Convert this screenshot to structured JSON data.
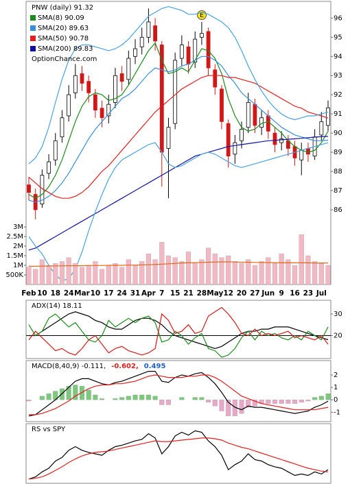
{
  "chart_data": [
    {
      "type": "candlestick",
      "title": "PNW (daily) 91.32",
      "watermark": "OptionChance.com",
      "earnings_label": "E",
      "categories": [
        "Feb",
        null,
        "10",
        null,
        "18",
        null,
        "24",
        null,
        "Mar",
        null,
        "10",
        null,
        "17",
        null,
        "24",
        null,
        "31",
        null,
        "Apr",
        null,
        "7",
        null,
        "15",
        null,
        "21",
        null,
        "28",
        null,
        "May",
        null,
        "12",
        null,
        "20",
        null,
        "27",
        null,
        "Jun",
        null,
        "9",
        null,
        "16",
        null,
        "23",
        null,
        "Jul",
        null
      ],
      "open": [
        87.3,
        86.8,
        86.3,
        87.9,
        88.6,
        89.8,
        90.9,
        92.1,
        93.1,
        92.7,
        92.0,
        91.3,
        90.9,
        91.6,
        93.1,
        92.8,
        94.0,
        94.5,
        95.0,
        95.6,
        94.6,
        89.2,
        90.5,
        93.9,
        94.5,
        93.7,
        95.0,
        95.3,
        93.3,
        92.3,
        90.5,
        88.9,
        89.6,
        90.3,
        91.5,
        90.3,
        90.9,
        90.0,
        89.5,
        89.6,
        89.3,
        88.6,
        89.2,
        88.8,
        89.9,
        90.4
      ],
      "high": [
        87.7,
        87.1,
        88.1,
        88.9,
        90.0,
        91.2,
        92.5,
        93.6,
        93.5,
        93.0,
        92.3,
        91.7,
        92.0,
        93.4,
        93.5,
        94.3,
        94.9,
        95.5,
        96.5,
        96.0,
        94.8,
        90.8,
        94.2,
        95.1,
        94.8,
        95.3,
        95.8,
        95.5,
        93.6,
        92.5,
        90.7,
        89.9,
        90.6,
        92.1,
        91.8,
        91.2,
        91.2,
        90.3,
        90.1,
        89.9,
        89.6,
        89.5,
        89.5,
        90.2,
        91.1,
        91.7
      ],
      "low": [
        86.5,
        85.5,
        86.1,
        87.6,
        88.3,
        89.5,
        90.6,
        91.8,
        92.2,
        91.6,
        90.8,
        90.3,
        90.5,
        91.3,
        92.2,
        92.5,
        93.6,
        94.1,
        94.7,
        94.3,
        87.2,
        86.6,
        90.2,
        93.5,
        93.1,
        93.4,
        94.6,
        93.0,
        92.0,
        90.2,
        88.2,
        88.4,
        89.2,
        90.0,
        90.0,
        89.9,
        89.7,
        89.0,
        89.1,
        88.8,
        88.3,
        87.8,
        88.5,
        88.6,
        89.6,
        90.1
      ],
      "close": [
        86.9,
        86.0,
        87.8,
        88.5,
        89.6,
        90.8,
        92.0,
        93.0,
        92.6,
        92.1,
        91.2,
        90.8,
        91.5,
        93.0,
        92.7,
        93.9,
        94.4,
        95.0,
        95.8,
        94.8,
        89.0,
        90.3,
        93.8,
        94.6,
        93.6,
        94.9,
        95.2,
        93.4,
        92.4,
        90.6,
        88.8,
        89.5,
        90.2,
        91.6,
        90.4,
        90.8,
        90.1,
        89.4,
        89.7,
        89.2,
        88.7,
        89.1,
        88.9,
        89.8,
        90.6,
        91.32
      ],
      "up_color": "#000000",
      "down_color": "#d01818",
      "series": [
        {
          "name": "SMA(8) 90.09",
          "color": "#1a8a1a",
          "values": [
            86.8,
            86.6,
            86.8,
            87.2,
            87.8,
            88.6,
            89.6,
            90.6,
            91.4,
            91.9,
            92.1,
            92.0,
            91.7,
            91.8,
            92.0,
            92.5,
            93.1,
            93.7,
            94.3,
            94.7,
            93.8,
            93.1,
            93.2,
            93.4,
            93.2,
            93.8,
            94.4,
            94.3,
            93.9,
            93.1,
            91.8,
            90.9,
            90.3,
            90.1,
            90.2,
            90.5,
            90.6,
            90.3,
            90.0,
            89.6,
            89.3,
            89.1,
            89.0,
            89.1,
            89.5,
            90.09
          ]
        },
        {
          "name": "SMA(20) 89.63",
          "color": "#3a8ed8",
          "values": [
            86.5,
            86.4,
            86.5,
            86.7,
            87.0,
            87.4,
            87.9,
            88.5,
            89.1,
            89.7,
            90.2,
            90.6,
            91.0,
            91.4,
            91.8,
            92.0,
            92.3,
            92.7,
            93.1,
            93.4,
            93.3,
            93.2,
            93.3,
            93.5,
            93.6,
            93.8,
            94.0,
            94.0,
            93.8,
            93.5,
            93.0,
            92.6,
            92.1,
            91.8,
            91.5,
            91.2,
            90.9,
            90.6,
            90.3,
            90.1,
            89.9,
            89.8,
            89.7,
            89.6,
            89.6,
            89.63
          ]
        },
        {
          "name": "SMA(50) 90.78",
          "color": "#e02020",
          "values": [
            87.7,
            87.4,
            87.1,
            86.9,
            86.7,
            86.6,
            86.6,
            86.7,
            86.9,
            87.2,
            87.6,
            88.0,
            88.3,
            88.7,
            89.1,
            89.5,
            89.9,
            90.3,
            90.7,
            91.1,
            91.4,
            91.7,
            92.0,
            92.3,
            92.5,
            92.7,
            92.9,
            93.0,
            93.0,
            93.0,
            92.9,
            92.9,
            92.8,
            92.7,
            92.6,
            92.4,
            92.2,
            92.0,
            91.8,
            91.6,
            91.4,
            91.3,
            91.1,
            91.0,
            90.9,
            90.78
          ]
        },
        {
          "name": "SMA(200) 89.83",
          "color": "#1010a0",
          "values": [
            83.9,
            84.0,
            84.2,
            84.4,
            84.6,
            84.8,
            85.0,
            85.2,
            85.4,
            85.6,
            85.8,
            86.0,
            86.2,
            86.4,
            86.6,
            86.8,
            87.0,
            87.2,
            87.4,
            87.6,
            87.8,
            88.0,
            88.2,
            88.4,
            88.6,
            88.8,
            88.9,
            89.0,
            89.1,
            89.2,
            89.3,
            89.35,
            89.4,
            89.45,
            89.5,
            89.55,
            89.6,
            89.62,
            89.65,
            89.68,
            89.7,
            89.73,
            89.76,
            89.79,
            89.81,
            89.83
          ]
        },
        {
          "color": "#4aa0e0",
          "values": [
            88.4,
            88.7,
            89.3,
            90.3,
            91.6,
            92.8,
            93.8,
            94.4,
            94.6,
            94.6,
            94.5,
            94.4,
            94.3,
            94.4,
            94.6,
            94.9,
            95.3,
            95.7,
            96.1,
            96.3,
            96.5,
            96.6,
            96.5,
            96.4,
            96.2,
            96.2,
            96.3,
            96.2,
            96.0,
            95.8,
            95.5,
            95.0,
            94.3,
            93.5,
            92.8,
            92.2,
            91.7,
            91.3,
            91.0,
            90.8,
            90.7,
            90.8,
            90.9,
            90.9,
            91.0,
            91.1
          ]
        },
        {
          "color": "#4aa0e0",
          "values": [
            84.6,
            84.1,
            83.7,
            83.1,
            82.6,
            82.3,
            82.4,
            82.9,
            83.8,
            84.9,
            85.9,
            86.8,
            87.6,
            88.2,
            88.6,
            88.8,
            89.0,
            89.2,
            89.4,
            89.5,
            89.0,
            88.4,
            88.2,
            88.3,
            88.5,
            88.7,
            88.9,
            89.0,
            88.9,
            88.7,
            88.5,
            88.3,
            88.2,
            88.3,
            88.4,
            88.5,
            88.6,
            88.7,
            88.8,
            88.9,
            89.0,
            89.1,
            89.2,
            89.3,
            89.4,
            89.5
          ]
        }
      ],
      "ylim": [
        82.1,
        96.8
      ],
      "yticks": [
        86,
        87,
        88,
        89,
        90,
        91,
        92,
        93,
        94,
        95,
        96
      ]
    },
    {
      "type": "bar",
      "series": [
        {
          "type": "bar",
          "color": "#f2b8c4",
          "values": [
            0.9,
            0.8,
            1.3,
            1.0,
            1.1,
            1.2,
            1.4,
            1.1,
            0.9,
            1.0,
            1.2,
            0.8,
            1.0,
            1.1,
            0.9,
            1.3,
            1.0,
            1.2,
            1.6,
            1.3,
            2.2,
            1.5,
            1.4,
            1.2,
            1.7,
            1.1,
            1.3,
            1.9,
            1.6,
            1.4,
            1.5,
            1.2,
            1.1,
            1.3,
            1.0,
            1.2,
            1.4,
            1.1,
            1.6,
            1.3,
            1.0,
            2.6,
            1.5,
            1.2,
            1.1,
            1.0
          ]
        },
        {
          "type": "line",
          "color": "#e06818",
          "values": [
            0.95,
            0.95,
            0.96,
            0.96,
            0.97,
            0.97,
            0.98,
            0.98,
            0.98,
            0.99,
            0.99,
            0.99,
            1.0,
            1.0,
            1.0,
            1.01,
            1.01,
            1.02,
            1.03,
            1.04,
            1.06,
            1.08,
            1.1,
            1.12,
            1.13,
            1.14,
            1.15,
            1.16,
            1.17,
            1.18,
            1.18,
            1.17,
            1.16,
            1.16,
            1.15,
            1.15,
            1.14,
            1.14,
            1.13,
            1.13,
            1.13,
            1.13,
            1.13,
            1.12,
            1.12,
            1.12
          ]
        }
      ],
      "ylim": [
        0,
        3.5
      ],
      "yticks": [
        {
          "value": 3,
          "label": "3M"
        },
        {
          "value": 2.5,
          "label": "2.5M"
        },
        {
          "value": 2,
          "label": "2M"
        },
        {
          "value": 1.5,
          "label": "1.5M"
        },
        {
          "value": 1,
          "label": "1M"
        },
        {
          "value": 0.5,
          "label": "500K"
        }
      ]
    },
    {
      "type": "line",
      "title": "ADX(14) 18.11",
      "hline": 20,
      "series": [
        {
          "color": "#000000",
          "values": [
            20,
            20,
            22,
            24,
            26,
            28,
            30,
            31,
            30,
            29,
            27,
            26,
            24,
            23,
            23,
            25,
            27,
            28,
            28,
            27,
            25,
            22,
            20,
            19,
            18,
            17,
            16,
            15,
            14,
            15,
            17,
            19,
            21,
            22,
            22,
            23,
            23,
            24,
            24,
            24,
            23,
            22,
            21,
            20,
            19,
            18.11
          ]
        },
        {
          "color": "#1a8a1a",
          "values": [
            25,
            20,
            22,
            28,
            30,
            27,
            24,
            26,
            22,
            18,
            17,
            20,
            27,
            24,
            26,
            28,
            26,
            28,
            29,
            26,
            17,
            18,
            22,
            20,
            16,
            19,
            21,
            14,
            13,
            10,
            11,
            14,
            19,
            22,
            18,
            22,
            20,
            21,
            19,
            18,
            20,
            18,
            22,
            20,
            18,
            24
          ]
        },
        {
          "color": "#d01818",
          "values": [
            18,
            22,
            19,
            16,
            13,
            14,
            12,
            11,
            14,
            18,
            20,
            16,
            12,
            14,
            15,
            13,
            12,
            11,
            12,
            14,
            30,
            27,
            21,
            22,
            25,
            21,
            22,
            29,
            31,
            33,
            30,
            26,
            21,
            20,
            23,
            20,
            21,
            20,
            21,
            22,
            19,
            20,
            19,
            18,
            20,
            16
          ]
        }
      ],
      "ylim": [
        9.7,
        35.7
      ],
      "yticks": [
        20,
        30
      ]
    },
    {
      "type": "line",
      "title": "MACD(8,40,9) -0.111,",
      "signal_label": "-0.602,",
      "histogram_label": "0.495",
      "series": [
        {
          "type": "bar",
          "color": "#7cc87c",
          "negative_color": "#e8a8c8",
          "values": [
            -0.1,
            0.0,
            0.3,
            0.5,
            0.7,
            0.9,
            1.1,
            1.2,
            1.1,
            0.8,
            0.4,
            0.1,
            0.0,
            0.1,
            0.2,
            0.3,
            0.4,
            0.4,
            0.4,
            0.3,
            -0.4,
            -0.4,
            0.0,
            0.2,
            0.0,
            0.2,
            0.2,
            -0.2,
            -0.5,
            -0.9,
            -1.3,
            -1.3,
            -1.1,
            -0.6,
            -0.5,
            -0.3,
            -0.3,
            -0.3,
            -0.3,
            -0.3,
            -0.3,
            -0.2,
            -0.1,
            0.2,
            0.3,
            0.495
          ]
        },
        {
          "color": "#000000",
          "values": [
            -1.3,
            -1.2,
            -0.8,
            -0.4,
            0.0,
            0.5,
            1.0,
            1.5,
            1.7,
            1.7,
            1.5,
            1.3,
            1.2,
            1.4,
            1.5,
            1.7,
            1.9,
            2.1,
            2.3,
            2.3,
            1.5,
            1.4,
            1.8,
            2.0,
            1.9,
            2.1,
            2.2,
            1.8,
            1.3,
            0.6,
            -0.2,
            -0.6,
            -0.8,
            -0.5,
            -0.6,
            -0.6,
            -0.7,
            -0.8,
            -0.9,
            -1.0,
            -1.1,
            -1.0,
            -0.9,
            -0.6,
            -0.4,
            -0.111
          ]
        },
        {
          "color": "#e02020",
          "values": [
            -1.2,
            -1.2,
            -1.1,
            -0.9,
            -0.7,
            -0.4,
            -0.1,
            0.3,
            0.6,
            0.9,
            1.1,
            1.2,
            1.2,
            1.3,
            1.3,
            1.4,
            1.5,
            1.7,
            1.9,
            2.0,
            1.9,
            1.8,
            1.8,
            1.8,
            1.9,
            1.9,
            2.0,
            2.0,
            1.8,
            1.5,
            1.1,
            0.7,
            0.3,
            0.1,
            -0.1,
            -0.3,
            -0.4,
            -0.5,
            -0.6,
            -0.7,
            -0.8,
            -0.8,
            -0.8,
            -0.8,
            -0.7,
            -0.602
          ]
        }
      ],
      "ylim": [
        -1.7,
        3.05
      ],
      "yticks": [
        2,
        1,
        0,
        -1
      ]
    },
    {
      "type": "line",
      "title": "RS vs SPY",
      "series": [
        {
          "color": "#000000",
          "values": [
            5,
            8,
            15,
            20,
            30,
            35,
            45,
            50,
            45,
            42,
            40,
            38,
            45,
            50,
            52,
            55,
            58,
            60,
            68,
            62,
            40,
            50,
            65,
            70,
            66,
            72,
            70,
            58,
            50,
            38,
            18,
            25,
            30,
            40,
            32,
            30,
            25,
            22,
            20,
            15,
            10,
            12,
            10,
            15,
            12,
            18
          ]
        },
        {
          "color": "#e02020",
          "values": [
            5,
            6,
            8,
            12,
            17,
            22,
            28,
            33,
            37,
            40,
            42,
            43,
            44,
            46,
            48,
            50,
            52,
            54,
            56,
            58,
            57,
            57,
            58,
            59,
            60,
            61,
            62,
            62,
            61,
            59,
            55,
            52,
            49,
            47,
            44,
            41,
            38,
            35,
            32,
            29,
            26,
            23,
            20,
            18,
            16,
            15
          ]
        }
      ],
      "ylim": [
        0,
        80
      ]
    }
  ]
}
